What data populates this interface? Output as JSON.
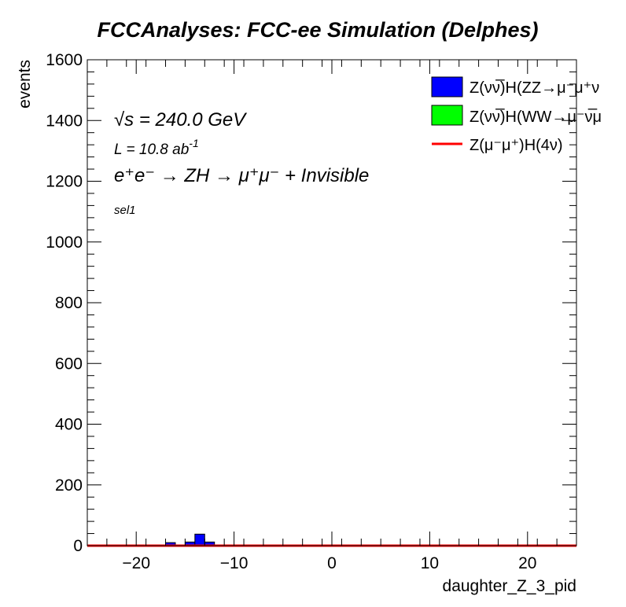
{
  "title": "FCCAnalyses: FCC-ee Simulation (Delphes)",
  "annotations": {
    "energy": "√s = 240.0 GeV",
    "lumi_prefix": "L = 10.8 ab",
    "lumi_exp": "-1",
    "process": "e⁺e⁻ → ZH → μ⁺μ⁻ + Invisible",
    "selection": "sel1"
  },
  "colors": {
    "zz_fill": "#0000ff",
    "ww_fill": "#00ff00",
    "signal_line": "#ff0000"
  },
  "chart_data": {
    "type": "bar",
    "title": "FCCAnalyses: FCC-ee Simulation (Delphes)",
    "xlabel": "daughter_Z_3_pid",
    "ylabel": "events",
    "xlim": [
      -25,
      25
    ],
    "ylim": [
      0,
      1600
    ],
    "x_ticks": [
      -20,
      -10,
      0,
      10,
      20
    ],
    "x_tick_labels": [
      "−20",
      "−10",
      "0",
      "10",
      "20"
    ],
    "y_ticks": [
      0,
      200,
      400,
      600,
      800,
      1000,
      1200,
      1400,
      1600
    ],
    "y_tick_labels": [
      "0",
      "200",
      "400",
      "600",
      "800",
      "1000",
      "1200",
      "1400",
      "1600"
    ],
    "bin_width": 1,
    "legend_position": "top-right",
    "series": [
      {
        "name": "Z(νν̅)H(ZZ→μ⁻μ⁺ν",
        "style": "filled",
        "color": "#0000ff",
        "bins": [
          {
            "x": [
              -17,
              -16
            ],
            "value": 10
          },
          {
            "x": [
              -15,
              -14
            ],
            "value": 12
          },
          {
            "x": [
              -14,
              -13
            ],
            "value": 38
          },
          {
            "x": [
              -13,
              -12
            ],
            "value": 12
          }
        ]
      },
      {
        "name": "Z(νν̅)H(WW→μ⁻ν̅μ",
        "style": "filled",
        "color": "#00ff00",
        "bins": []
      },
      {
        "name": "Z(μ⁻μ⁺)H(4ν)",
        "style": "line",
        "color": "#ff0000",
        "bins": []
      }
    ]
  }
}
